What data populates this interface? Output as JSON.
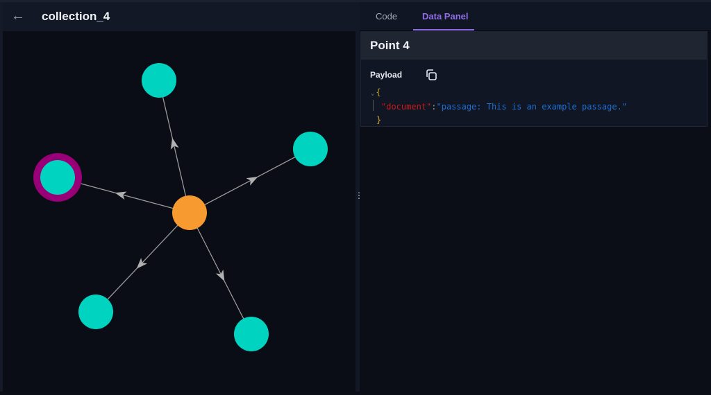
{
  "header": {
    "title": "collection_4",
    "back_icon": "arrow-left-icon"
  },
  "tabs": [
    {
      "label": "Code",
      "active": false
    },
    {
      "label": "Data Panel",
      "active": true
    }
  ],
  "panel": {
    "title": "Point 4",
    "payload_label": "Payload",
    "copy_icon": "copy-icon",
    "payload": {
      "open": "{",
      "key": "\"document\"",
      "colon": ":",
      "value": "\"passage: This is an example passage.\"",
      "close": "}"
    }
  },
  "graph": {
    "colors": {
      "center": "#f79a30",
      "node": "#00d4c0",
      "selected_ring": "#990077",
      "edge": "#9a9a9a",
      "background": "#0b0d16"
    },
    "center_node": "center",
    "selected_node": "n3"
  }
}
